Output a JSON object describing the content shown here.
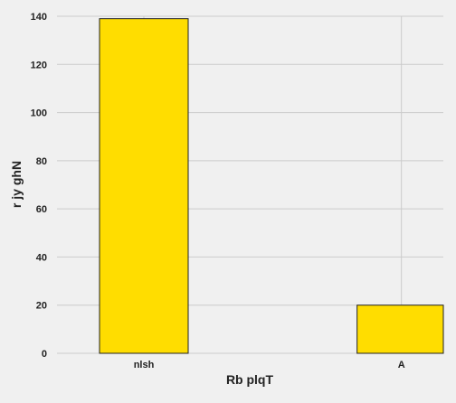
{
  "chart_data": {
    "type": "bar",
    "categories": [
      "nlsh",
      "A"
    ],
    "values": [
      139,
      20
    ],
    "xlabel": "Rb plqT",
    "ylabel": "r jy ghN",
    "ylim": [
      0,
      140
    ],
    "yticks": [
      "0",
      "20",
      "40",
      "60",
      "80",
      "100",
      "120",
      "140"
    ],
    "ytick_values": [
      0,
      20,
      40,
      60,
      80,
      100,
      120,
      140
    ],
    "grid": true,
    "colors": {
      "background": "#f0f0f0",
      "bar_fill": "#ffdd00",
      "bar_stroke": "#222222",
      "grid": "#cbcbcb",
      "text": "#222222"
    }
  }
}
